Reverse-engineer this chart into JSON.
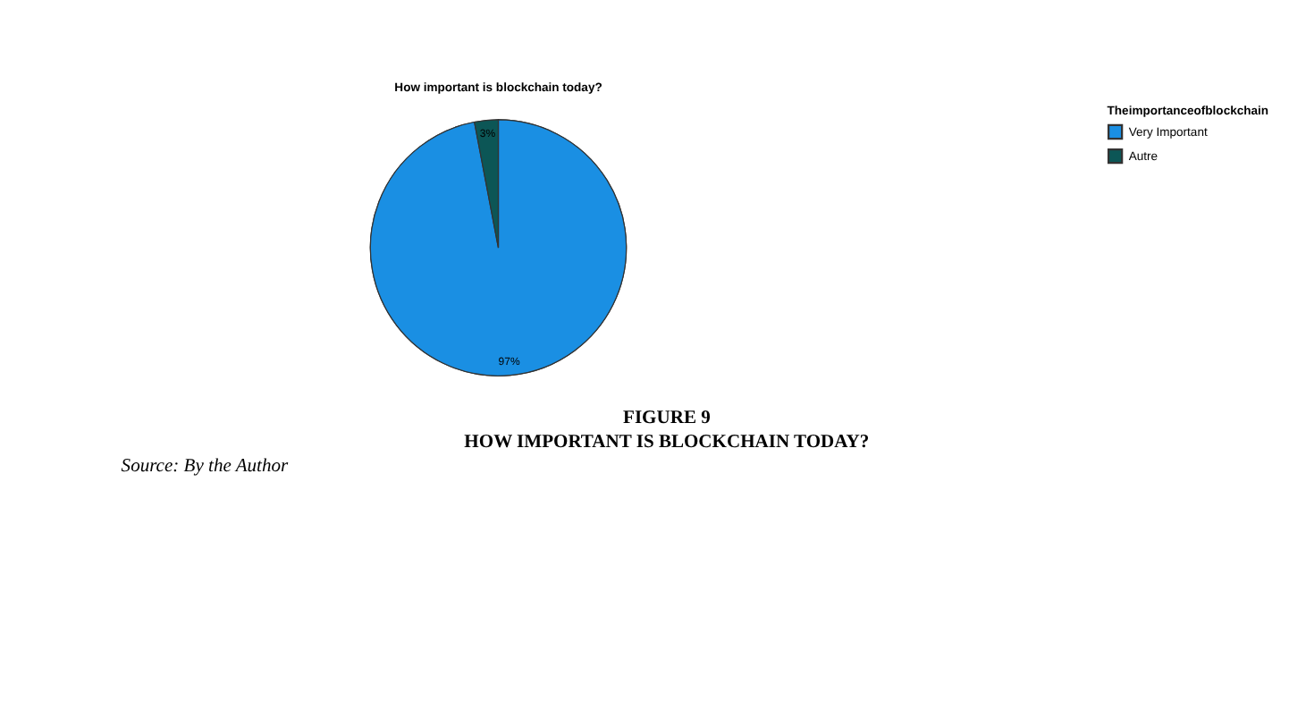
{
  "chart_data": {
    "type": "pie",
    "title": "How important is blockchain today?",
    "legend_title": "Theimportanceofblockchain",
    "categories": [
      "Very Important",
      "Autre"
    ],
    "values": [
      97,
      3
    ],
    "colors": [
      "#1a8fe3",
      "#0c5656"
    ],
    "value_labels": [
      "97%",
      "3%"
    ],
    "legend": "top right",
    "annotations": [
      "FIGURE 9",
      "HOW IMPORTANT IS BLOCKCHAIN TODAY?",
      "Source: By the Author"
    ]
  }
}
